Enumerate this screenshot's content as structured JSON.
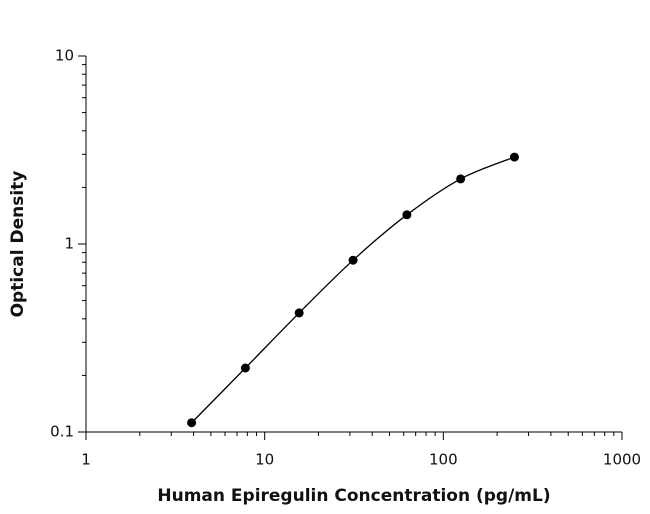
{
  "chart_data": {
    "type": "scatter",
    "log_x": true,
    "log_y": true,
    "x_label": "Human Epiregulin Concentration (pg/mL)",
    "y_label": "Optical Density",
    "series": [
      {
        "color": "#000000",
        "x": [
          3.9,
          7.8,
          15.6,
          31.25,
          62.5,
          125,
          250
        ],
        "values": [
          0.112,
          0.219,
          0.43,
          0.82,
          1.43,
          2.22,
          2.9
        ]
      }
    ],
    "fit_line": true,
    "xlim": [
      1,
      1000
    ],
    "xticks": [
      1,
      10,
      100,
      1000
    ],
    "ylim": [
      0.1,
      10
    ],
    "yticks": [
      0.1,
      1,
      10
    ]
  }
}
